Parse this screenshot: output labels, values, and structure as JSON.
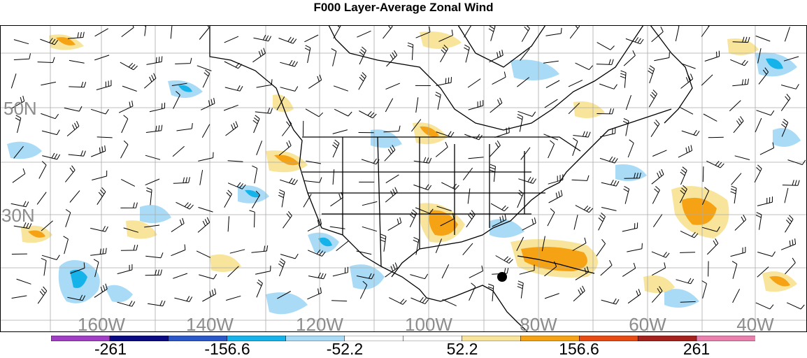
{
  "title": "F000 Layer-Average Zonal Wind",
  "map": {
    "lat_labels": [
      "50N",
      "30N"
    ],
    "lon_labels": [
      "160W",
      "140W",
      "120W",
      "100W",
      "80W",
      "60W",
      "40W"
    ],
    "label_color": "#8c8c8c",
    "grid_color": "#aaaaaa"
  },
  "colorbar": {
    "colors": [
      "#a13fc4",
      "#0a0a82",
      "#2b57c9",
      "#16b3ea",
      "#a9dbf6",
      "#ffffff",
      "#ffffff",
      "#f8e59b",
      "#f5a314",
      "#e84a13",
      "#a4211c",
      "#ea80ae"
    ],
    "labels": [
      "-261",
      "-156.6",
      "-52.2",
      "52.2",
      "156.6",
      "261"
    ]
  },
  "marker": {
    "type": "filled-circle",
    "color": "#000000"
  }
}
